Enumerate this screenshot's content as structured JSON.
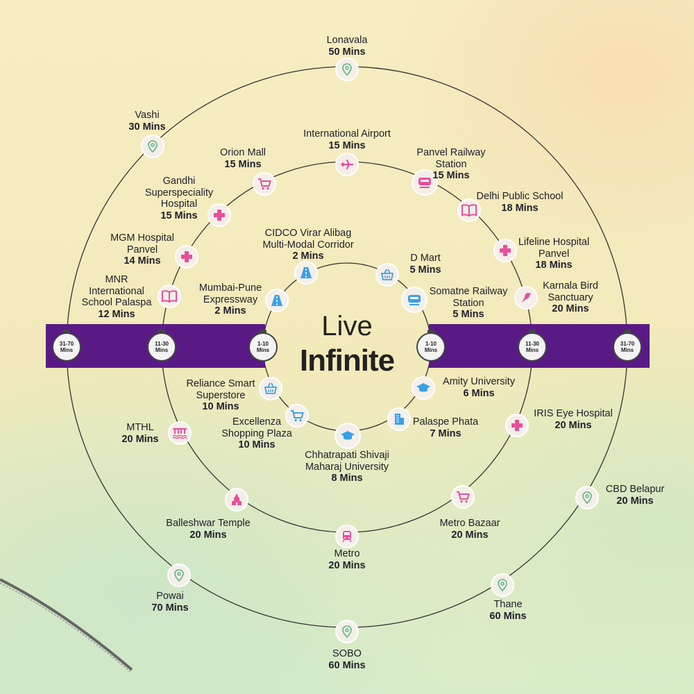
{
  "brand": {
    "line1": "Live",
    "line2": "Infinite"
  },
  "clocks": {
    "inner": [
      "1-10",
      "Mins"
    ],
    "middle": [
      "11-30",
      "Mins"
    ],
    "outer": [
      "31-70",
      "Mins"
    ]
  },
  "colors": {
    "band": "#5a1a86",
    "pink": "#e94e9b",
    "blue": "#3aa0e8",
    "green": "#5db581"
  },
  "locations": {
    "lonavala": {
      "name": "Lonavala",
      "time": "50 Mins",
      "icon": "map-pin-icon"
    },
    "vashi": {
      "name": "Vashi",
      "time": "30 Mins",
      "icon": "map-pin-icon"
    },
    "international_airport": {
      "name": "International Airport",
      "time": "15 Mins",
      "icon": "airplane-icon"
    },
    "orion_mall": {
      "name": "Orion Mall",
      "time": "15 Mins",
      "icon": "shopping-cart-icon"
    },
    "panvel_railway": {
      "name": "Panvel Railway\nStation",
      "time": "15 Mins",
      "icon": "train-icon"
    },
    "gandhi_hospital": {
      "name": "Gandhi\nSuperspeciality\nHospital",
      "time": "15 Mins",
      "icon": "medical-cross-icon"
    },
    "delhi_public_school": {
      "name": "Delhi Public School",
      "time": "18 Mins",
      "icon": "book-icon"
    },
    "lifeline_hospital": {
      "name": "Lifeline Hospital\nPanvel",
      "time": "18 Mins",
      "icon": "medical-cross-icon"
    },
    "mgm_hospital": {
      "name": "MGM Hospital\nPanvel",
      "time": "14 Mins",
      "icon": "medical-cross-icon"
    },
    "cidco_corridor": {
      "name": "CIDCO Virar Alibag\nMulti-Modal Corridor",
      "time": "2 Mins",
      "icon": "road-icon"
    },
    "d_mart": {
      "name": "D Mart",
      "time": "5 Mins",
      "icon": "shopping-basket-icon"
    },
    "mnr_school": {
      "name": "MNR\nInternational\nSchool Palaspa",
      "time": "12 Mins",
      "icon": "book-icon"
    },
    "karnala_bird": {
      "name": "Karnala Bird\nSanctuary",
      "time": "20 Mins",
      "icon": "bird-icon"
    },
    "mumbai_pune": {
      "name": "Mumbai-Pune\nExpressway",
      "time": "2 Mins",
      "icon": "road-icon"
    },
    "somatne_railway": {
      "name": "Somatne Railway\nStation",
      "time": "5 Mins",
      "icon": "train-icon"
    },
    "reliance_smart": {
      "name": "Reliance Smart\nSuperstore",
      "time": "10 Mins",
      "icon": "shopping-basket-icon"
    },
    "amity_university": {
      "name": "Amity University",
      "time": "6 Mins",
      "icon": "graduation-cap-icon"
    },
    "iris_eye": {
      "name": "IRIS Eye Hospital",
      "time": "20 Mins",
      "icon": "medical-cross-icon"
    },
    "mthl": {
      "name": "MTHL",
      "time": "20 Mins",
      "icon": "bridge-icon"
    },
    "excellenza": {
      "name": "Excellenza\nShopping Plaza",
      "time": "10 Mins",
      "icon": "shopping-cart-icon"
    },
    "palaspe_phata": {
      "name": "Palaspe Phata",
      "time": "7 Mins",
      "icon": "building-icon"
    },
    "chhatrapati_university": {
      "name": "Chhatrapati Shivaji\nMaharaj University",
      "time": "8 Mins",
      "icon": "graduation-cap-icon"
    },
    "cbd_belapur": {
      "name": "CBD Belapur",
      "time": "20 Mins",
      "icon": "map-pin-icon"
    },
    "balleshwar_temple": {
      "name": "Balleshwar Temple",
      "time": "20 Mins",
      "icon": "temple-icon"
    },
    "metro_bazaar": {
      "name": "Metro Bazaar",
      "time": "20 Mins",
      "icon": "shopping-cart-icon"
    },
    "metro": {
      "name": "Metro",
      "time": "20 Mins",
      "icon": "metro-train-icon"
    },
    "powai": {
      "name": "Powai",
      "time": "70 Mins",
      "icon": "map-pin-icon"
    },
    "thane": {
      "name": "Thane",
      "time": "60 Mins",
      "icon": "map-pin-icon"
    },
    "sobo": {
      "name": "SOBO",
      "time": "60 Mins",
      "icon": "map-pin-icon"
    }
  }
}
